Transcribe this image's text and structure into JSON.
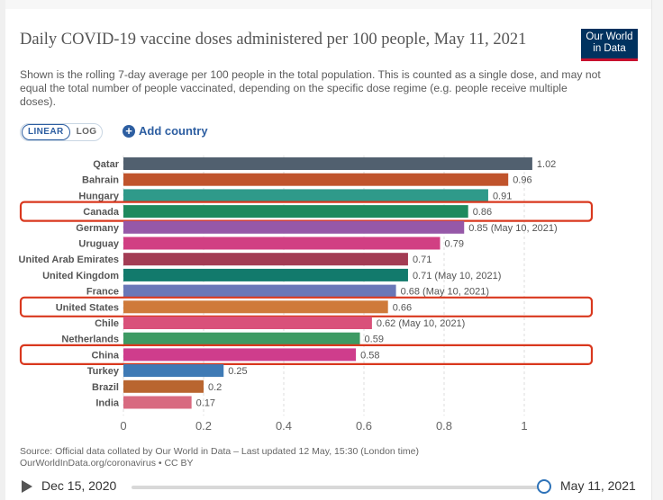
{
  "title": "Daily COVID-19 vaccine doses administered per 100 people, May 11, 2021",
  "subtitle": "Shown is the rolling 7-day average per 100 people in the total population. This is counted as a single dose, and may not equal the total number of people vaccinated, depending on the specific dose regime (e.g. people receive multiple doses).",
  "logo": {
    "line1": "Our World",
    "line2": "in Data"
  },
  "controls": {
    "linear": "LINEAR",
    "log": "LOG",
    "add_country": "Add country"
  },
  "source": {
    "line1": "Source: Official data collated by Our World in Data – Last updated 12 May, 15:30 (London time)",
    "line2": "OurWorldInData.org/coronavirus • CC BY"
  },
  "timeline": {
    "start": "Dec 15, 2020",
    "end": "May 11, 2021"
  },
  "chart_data": {
    "type": "bar",
    "orientation": "horizontal",
    "xlim": [
      0,
      1
    ],
    "xticks": [
      "0",
      "0.2",
      "0.4",
      "0.6",
      "0.8",
      "1"
    ],
    "highlighted": [
      "Canada",
      "United States",
      "China"
    ],
    "bars": [
      {
        "country": "Qatar",
        "value": 1.02,
        "label": "1.02",
        "color": "#51606f"
      },
      {
        "country": "Bahrain",
        "value": 0.96,
        "label": "0.96",
        "color": "#c0542c"
      },
      {
        "country": "Hungary",
        "value": 0.91,
        "label": "0.91",
        "color": "#2f9a8a"
      },
      {
        "country": "Canada",
        "value": 0.86,
        "label": "0.86",
        "color": "#1e8a5e"
      },
      {
        "country": "Germany",
        "value": 0.85,
        "label": "0.85 (May 10, 2021)",
        "color": "#9658a8"
      },
      {
        "country": "Uruguay",
        "value": 0.79,
        "label": "0.79",
        "color": "#d13f83"
      },
      {
        "country": "United Arab Emirates",
        "value": 0.71,
        "label": "0.71",
        "color": "#a33c54"
      },
      {
        "country": "United Kingdom",
        "value": 0.71,
        "label": "0.71 (May 10, 2021)",
        "color": "#127a6c"
      },
      {
        "country": "France",
        "value": 0.68,
        "label": "0.68 (May 10, 2021)",
        "color": "#6a77b8"
      },
      {
        "country": "United States",
        "value": 0.66,
        "label": "0.66",
        "color": "#cf7a3a"
      },
      {
        "country": "Chile",
        "value": 0.62,
        "label": "0.62 (May 10, 2021)",
        "color": "#d9517a"
      },
      {
        "country": "Netherlands",
        "value": 0.59,
        "label": "0.59",
        "color": "#3d9a63"
      },
      {
        "country": "China",
        "value": 0.58,
        "label": "0.58",
        "color": "#cf3d8c"
      },
      {
        "country": "Turkey",
        "value": 0.25,
        "label": "0.25",
        "color": "#3f7ab5"
      },
      {
        "country": "Brazil",
        "value": 0.2,
        "label": "0.2",
        "color": "#b9652f"
      },
      {
        "country": "India",
        "value": 0.17,
        "label": "0.17",
        "color": "#d86a80"
      }
    ]
  }
}
